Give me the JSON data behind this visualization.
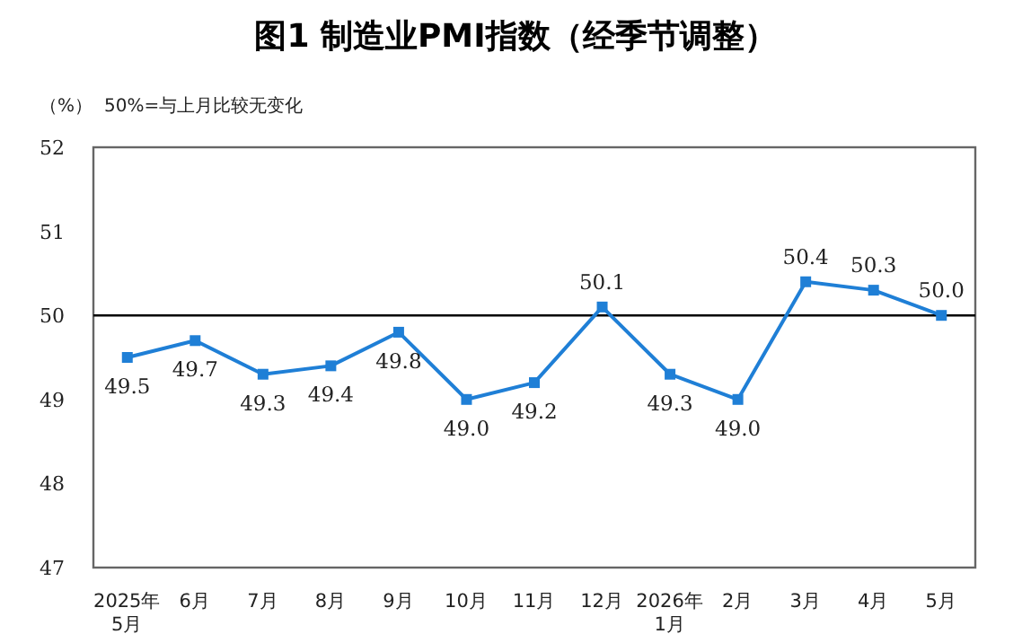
{
  "chart_data": {
    "type": "line",
    "title": "图1  制造业PMI指数（经季节调整）",
    "ylabel": "（%）",
    "annotations": [
      "50%=与上月比较无变化"
    ],
    "categories": [
      "2025年\n5月",
      "6月",
      "7月",
      "8月",
      "9月",
      "10月",
      "11月",
      "12月",
      "2026年\n1月",
      "2月",
      "3月",
      "4月",
      "5月"
    ],
    "series": [
      {
        "color": "#1f7fd6",
        "values": [
          49.5,
          49.7,
          49.3,
          49.4,
          49.8,
          49.0,
          49.2,
          50.1,
          49.3,
          49.0,
          50.4,
          50.3,
          50.0
        ],
        "value_labels": [
          "49.5",
          "49.7",
          "49.3",
          "49.4",
          "49.8",
          "49.0",
          "49.2",
          "50.1",
          "49.3",
          "49.0",
          "50.4",
          "50.3",
          "50.0"
        ]
      }
    ],
    "ylim": [
      47,
      52
    ],
    "yticks": [
      47,
      48,
      49,
      50,
      51,
      52
    ],
    "grid": false,
    "marker": "square",
    "line_style": "solid",
    "ref_lines": [
      {
        "axis": "y",
        "value": 50,
        "color": "#000000"
      }
    ]
  }
}
